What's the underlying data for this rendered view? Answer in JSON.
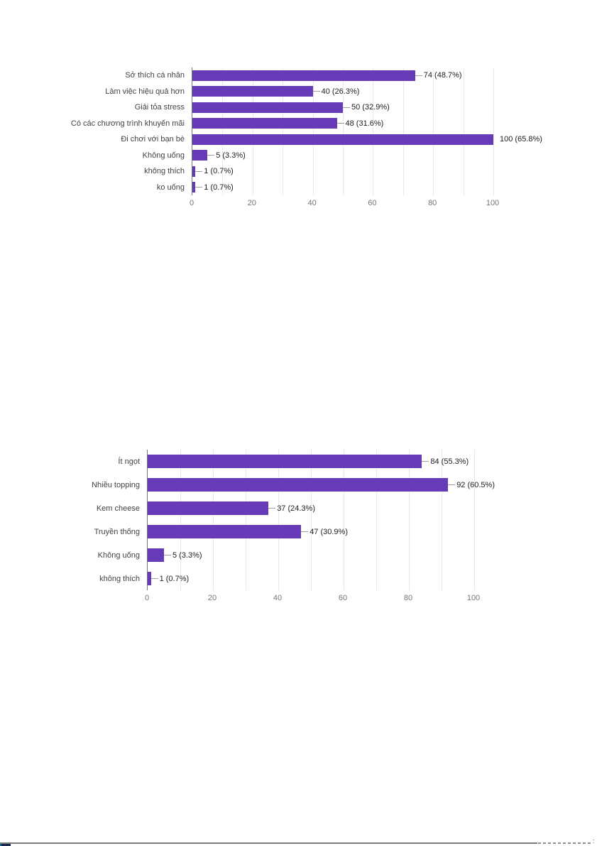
{
  "chart_data": [
    {
      "type": "bar",
      "orientation": "horizontal",
      "title": "",
      "categories": [
        "Sở thích cá nhân",
        "Làm việc hiệu quả hơn",
        "Giải tỏa stress",
        "Có các chương trình khuyến mãi",
        "Đi chơi với bạn bè",
        "Không uống",
        "không thích",
        "ko uống"
      ],
      "values": [
        74,
        40,
        50,
        48,
        100,
        5,
        1,
        1
      ],
      "value_labels": [
        "74 (48.7%)",
        "40 (26.3%)",
        "50 (32.9%)",
        "48 (31.6%)",
        "100 (65.8%)",
        "5 (3.3%)",
        "1 (0.7%)",
        "1 (0.7%)"
      ],
      "xlabel": "",
      "ylabel": "",
      "xlim": [
        0,
        100
      ],
      "tick_values": [
        0,
        20,
        40,
        60,
        80,
        100
      ],
      "tick_labels": [
        "0",
        "20",
        "40",
        "60",
        "80",
        "100"
      ],
      "gridline_step": 10,
      "grid": true,
      "legend": "none",
      "bar_color": "#673ab7"
    },
    {
      "type": "bar",
      "orientation": "horizontal",
      "title": "",
      "categories": [
        "Ít ngọt",
        "Nhiều topping",
        "Kem cheese",
        "Truyền thống",
        "Không uống",
        "không thích"
      ],
      "values": [
        84,
        92,
        37,
        47,
        5,
        1
      ],
      "value_labels": [
        "84 (55.3%)",
        "92 (60.5%)",
        "37 (24.3%)",
        "47 (30.9%)",
        "5 (3.3%)",
        "1 (0.7%)"
      ],
      "xlabel": "",
      "ylabel": "",
      "xlim": [
        0,
        100
      ],
      "tick_values": [
        0,
        20,
        40,
        60,
        80,
        100
      ],
      "tick_labels": [
        "0",
        "20",
        "40",
        "60",
        "80",
        "100"
      ],
      "gridline_step": 10,
      "grid": true,
      "legend": "none",
      "bar_color": "#673ab7"
    }
  ],
  "colors": {
    "bar": "#673ab7",
    "axis_line": "#757575",
    "gridline": "#e9e9e9",
    "category_label": "#424242",
    "value_label": "#212121",
    "tick_label": "#757575",
    "footer_divider": "#7b7b7b"
  },
  "footer": {
    "clipped_text": ":"
  }
}
